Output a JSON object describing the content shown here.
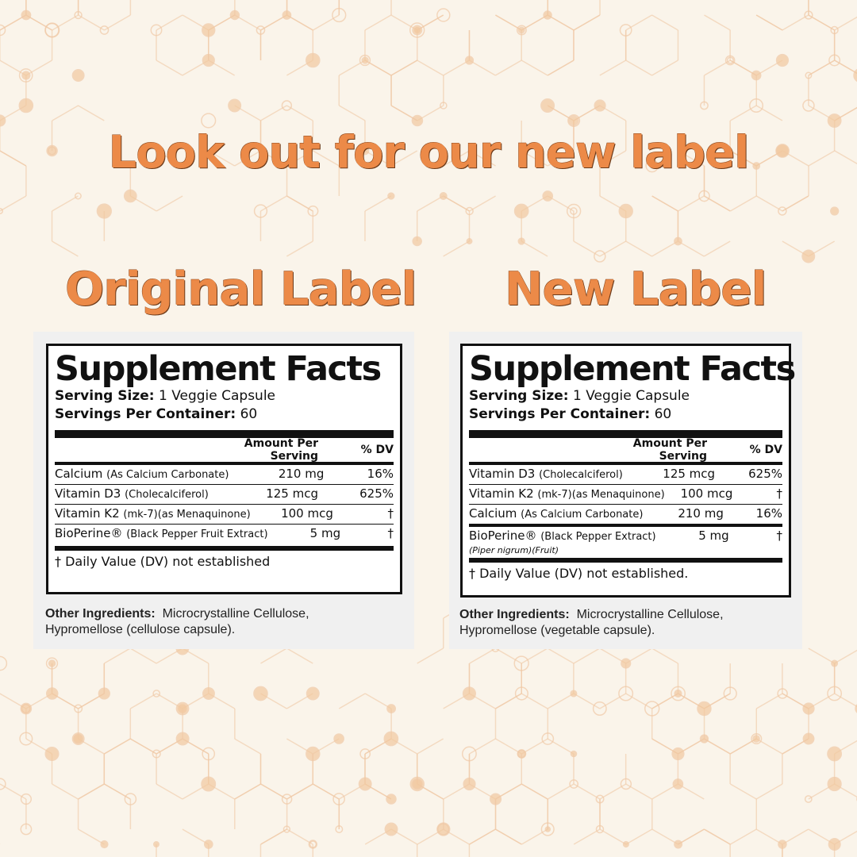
{
  "colors": {
    "accent": "#ec8a48",
    "background": "#faf4ea"
  },
  "heading": "Look out for our new label",
  "original": {
    "title": "Original Label",
    "facts_title": "Supplement Facts",
    "serving_size_label": "Serving Size:",
    "serving_size": "1 Veggie Capsule",
    "servings_label": "Servings Per Container:",
    "servings": "60",
    "col_amount": "Amount Per Serving",
    "col_dv": "% DV",
    "rows": [
      {
        "name": "Calcium",
        "detail": "(As Calcium Carbonate)",
        "amount": "210 mg",
        "dv": "16%"
      },
      {
        "name": "Vitamin D3",
        "detail": "(Cholecalciferol)",
        "amount": "125 mcg",
        "dv": "625%"
      },
      {
        "name": "Vitamin K2",
        "detail": "(mk-7)(as Menaquinone)",
        "amount": "100 mcg",
        "dv": "†"
      },
      {
        "name": "BioPerine®",
        "detail": "(Black Pepper Fruit Extract)",
        "amount": "5 mg",
        "dv": "†"
      }
    ],
    "footnote": "† Daily Value (DV) not established",
    "other_label": "Other Ingredients:",
    "other_text": "Microcrystalline Cellulose,",
    "other_text2": "Hypromellose (cellulose capsule)."
  },
  "new": {
    "title": "New Label",
    "facts_title": "Supplement Facts",
    "serving_size_label": "Serving Size:",
    "serving_size": "1 Veggie Capsule",
    "servings_label": "Servings Per Container:",
    "servings": "60",
    "col_amount": "Amount Per Serving",
    "col_dv": "% DV",
    "rows": [
      {
        "name": "Vitamin D3",
        "detail": "(Cholecalciferol)",
        "amount": "125 mcg",
        "dv": "625%"
      },
      {
        "name": "Vitamin K2",
        "detail": "(mk-7)(as Menaquinone)",
        "amount": "100 mcg",
        "dv": "†"
      },
      {
        "name": "Calcium",
        "detail": "(As Calcium Carbonate)",
        "amount": "210 mg",
        "dv": "16%"
      },
      {
        "name": "BioPerine®",
        "detail": "(Black Pepper Extract)",
        "sub": "(Piper nigrum)(Fruit)",
        "amount": "5 mg",
        "dv": "†"
      }
    ],
    "footnote": "† Daily Value (DV) not established.",
    "other_label": "Other Ingredients:",
    "other_text": "Microcrystalline Cellulose,",
    "other_text2": "Hypromellose (vegetable capsule)."
  }
}
